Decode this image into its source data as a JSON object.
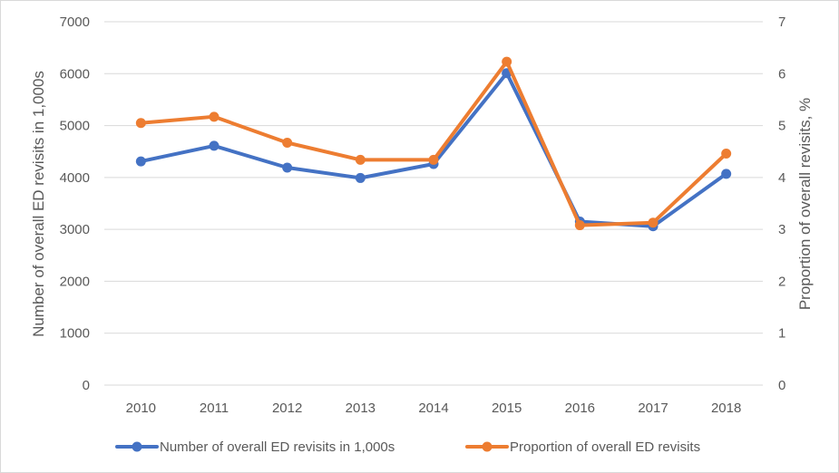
{
  "chart_data": {
    "type": "line",
    "title": "",
    "categories": [
      "2010",
      "2011",
      "2012",
      "2013",
      "2014",
      "2015",
      "2016",
      "2017",
      "2018"
    ],
    "series": [
      {
        "name": "Number of overall ED revisits in 1,000s",
        "axis": "left",
        "color": "#4472c4",
        "values": [
          4310,
          4610,
          4190,
          3990,
          4260,
          6010,
          3150,
          3060,
          4070
        ]
      },
      {
        "name": "Proportion of overall ED revisits",
        "axis": "right",
        "color": "#ed7d31",
        "values": [
          5.05,
          5.17,
          4.67,
          4.34,
          4.34,
          6.23,
          3.08,
          3.13,
          4.46
        ]
      }
    ],
    "y_left": {
      "label": "Number of overall ED revisits in 1,000s",
      "lim": [
        0,
        7000
      ],
      "ticks": [
        "0",
        "1000",
        "2000",
        "3000",
        "4000",
        "5000",
        "6000",
        "7000"
      ]
    },
    "y_right": {
      "label": "Proportion of overall revisits, %",
      "lim": [
        0,
        7
      ],
      "ticks": [
        "0",
        "1",
        "2",
        "3",
        "4",
        "5",
        "6",
        "7"
      ]
    },
    "grid": true,
    "legend": "bottom"
  }
}
